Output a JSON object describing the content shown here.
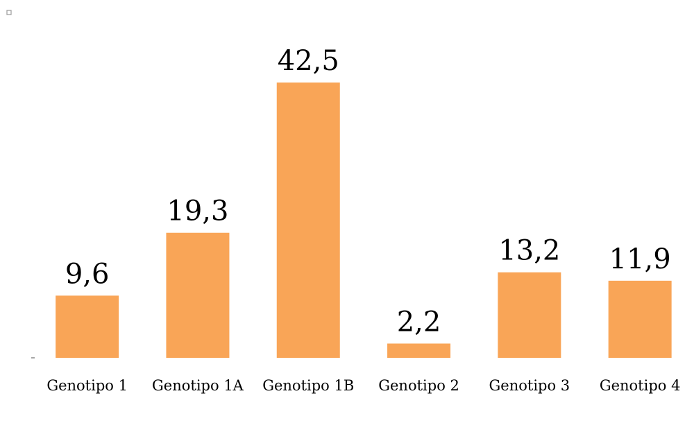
{
  "chart_data": {
    "type": "bar",
    "categories": [
      "Genotipo 1",
      "Genotipo 1A",
      "Genotipo 1B",
      "Genotipo 2",
      "Genotipo 3",
      "Genotipo 4"
    ],
    "values": [
      9.6,
      19.3,
      42.5,
      2.2,
      13.2,
      11.9
    ],
    "value_labels": [
      "9,6",
      "19,3",
      "42,5",
      "2,2",
      "13,2",
      "11,9"
    ],
    "color": "#f9a557"
  }
}
